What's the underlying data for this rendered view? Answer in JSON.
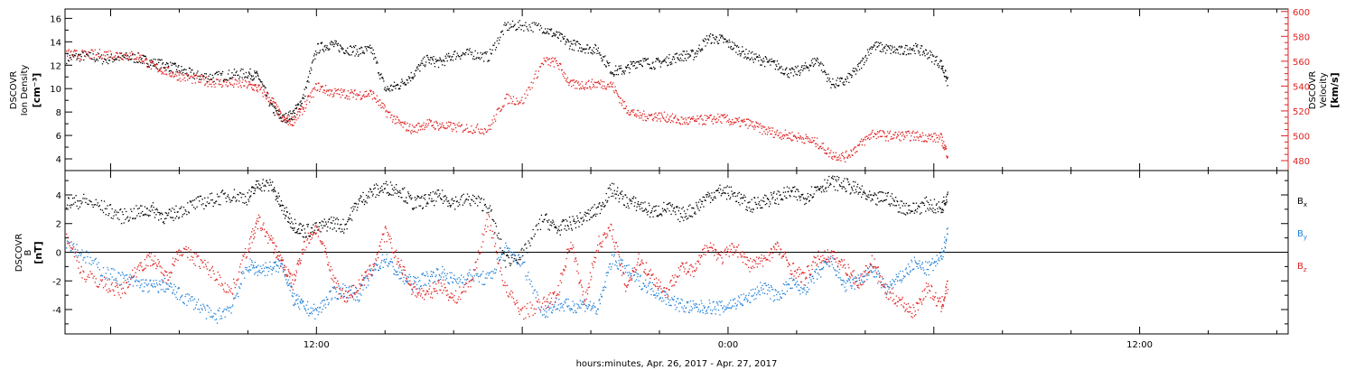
{
  "chart_data": {
    "type": "scatter",
    "xlabel": "hours:minutes, Apr. 26, 2017 - Apr. 27, 2017",
    "x_unit": "hours since 2017-04-26 00:00",
    "x_range": [
      4.67,
      40.33
    ],
    "x_ticks": [
      {
        "x": 12,
        "label": "12:00"
      },
      {
        "x": 24,
        "label": "0:00"
      },
      {
        "x": 36,
        "label": "12:00"
      }
    ],
    "panels": [
      {
        "name": "density-velocity",
        "ylabel_lines": [
          "DSCOVR",
          "Ion Density",
          "[cm⁻³]"
        ],
        "ylim": [
          3,
          16.8
        ],
        "yticks": [
          4,
          6,
          8,
          10,
          12,
          14,
          16
        ],
        "right_axis": {
          "label_lines": [
            "DSCOVR",
            "Velocity",
            "[km/s]"
          ],
          "color": "#e02020",
          "ylim": [
            472,
            602
          ],
          "yticks": [
            480,
            500,
            520,
            540,
            560,
            580,
            600
          ]
        },
        "series": [
          {
            "name": "density",
            "color": "#000000",
            "axis": "left",
            "x": [
              4.7,
              5.2,
              5.8,
              6.3,
              6.8,
              7.2,
              7.6,
              8.0,
              8.5,
              9.0,
              9.5,
              10.0,
              10.3,
              10.7,
              11.0,
              11.3,
              11.6,
              12.0,
              12.4,
              12.8,
              13.2,
              13.6,
              14.0,
              14.4,
              14.8,
              15.2,
              15.6,
              16.0,
              16.5,
              17.0,
              17.5,
              18.0,
              18.6,
              19.0,
              19.4,
              19.8,
              20.2,
              20.6,
              21.0,
              21.4,
              21.8,
              22.2,
              22.6,
              23.0,
              23.4,
              23.8,
              24.2,
              24.6,
              25.0,
              25.4,
              25.8,
              26.2,
              26.6,
              27.0,
              27.4,
              27.8,
              28.2,
              28.6,
              29.0,
              29.4,
              29.8,
              30.2,
              30.4
            ],
            "y": [
              12.6,
              12.8,
              12.5,
              12.7,
              12.6,
              12.2,
              12.0,
              11.6,
              11.1,
              11.0,
              11.2,
              11.3,
              11.0,
              8.3,
              7.4,
              7.8,
              9.2,
              13.4,
              13.8,
              13.4,
              13.2,
              13.3,
              9.9,
              10.3,
              11.2,
              12.5,
              12.2,
              12.9,
              13.0,
              12.7,
              15.3,
              15.4,
              15.2,
              14.5,
              13.8,
              13.5,
              13.3,
              11.5,
              11.6,
              12.4,
              12.1,
              12.4,
              12.8,
              12.9,
              14.3,
              14.2,
              13.5,
              12.8,
              12.4,
              12.0,
              11.3,
              11.7,
              12.5,
              10.4,
              10.6,
              11.8,
              13.7,
              13.4,
              13.2,
              13.5,
              13.0,
              12.1,
              10.5
            ]
          },
          {
            "name": "velocity",
            "color": "#e02020",
            "axis": "right",
            "x": [
              4.7,
              5.2,
              5.8,
              6.3,
              6.8,
              7.2,
              7.6,
              8.0,
              8.5,
              9.0,
              9.5,
              10.0,
              10.3,
              10.7,
              11.0,
              11.3,
              11.6,
              12.0,
              12.4,
              12.8,
              13.2,
              13.6,
              14.0,
              14.4,
              14.8,
              15.2,
              15.6,
              16.0,
              16.5,
              17.0,
              17.5,
              18.0,
              18.6,
              19.0,
              19.4,
              19.8,
              20.2,
              20.6,
              21.0,
              21.4,
              21.8,
              22.2,
              22.6,
              23.0,
              23.4,
              23.8,
              24.2,
              24.6,
              25.0,
              25.4,
              25.8,
              26.2,
              26.6,
              27.0,
              27.4,
              27.8,
              28.2,
              28.6,
              29.0,
              29.4,
              29.8,
              30.2,
              30.4
            ],
            "y": [
              566,
              565,
              566,
              565,
              564,
              556,
              552,
              548,
              545,
              543,
              542,
              541,
              538,
              528,
              513,
              512,
              522,
              540,
              535,
              534,
              533,
              534,
              520,
              510,
              505,
              510,
              508,
              507,
              506,
              505,
              530,
              528,
              560,
              559,
              541,
              541,
              542,
              541,
              522,
              516,
              516,
              515,
              512,
              512,
              513,
              514,
              511,
              510,
              505,
              502,
              500,
              498,
              494,
              485,
              483,
              492,
              502,
              500,
              500,
              500,
              499,
              498,
              484
            ]
          }
        ]
      },
      {
        "name": "magnetic-field",
        "ylabel_lines": [
          "DSCOVR",
          "B",
          "[nT]"
        ],
        "ylim": [
          -5.7,
          5.7
        ],
        "yticks": [
          -4,
          -2,
          0,
          2,
          4
        ],
        "zero_line": true,
        "legend_position": "right",
        "series": [
          {
            "name": "Bx",
            "legend_label": "B",
            "legend_subscript": "x",
            "color": "#000000",
            "x": [
              4.7,
              5.2,
              5.8,
              6.3,
              6.8,
              7.2,
              7.6,
              8.0,
              8.5,
              9.0,
              9.5,
              10.0,
              10.3,
              10.7,
              11.0,
              11.3,
              11.6,
              12.0,
              12.4,
              12.8,
              13.2,
              13.6,
              14.0,
              14.4,
              14.8,
              15.2,
              15.6,
              16.0,
              16.5,
              17.0,
              17.5,
              18.0,
              18.6,
              19.0,
              19.4,
              19.8,
              20.2,
              20.6,
              21.0,
              21.4,
              21.8,
              22.2,
              22.6,
              23.0,
              23.4,
              23.8,
              24.2,
              24.6,
              25.0,
              25.4,
              25.8,
              26.2,
              26.6,
              27.0,
              27.4,
              27.8,
              28.2,
              28.6,
              29.0,
              29.4,
              29.8,
              30.2,
              30.4
            ],
            "y": [
              3.4,
              3.6,
              3.1,
              2.5,
              2.8,
              3.0,
              2.4,
              2.9,
              3.4,
              3.7,
              4.0,
              3.8,
              4.8,
              4.6,
              3.0,
              2.0,
              1.5,
              1.6,
              2.1,
              1.8,
              3.5,
              4.2,
              4.5,
              4.4,
              3.4,
              3.6,
              3.9,
              3.5,
              3.7,
              3.2,
              -0.6,
              -0.2,
              2.4,
              1.6,
              2.0,
              2.4,
              3.0,
              4.4,
              3.6,
              3.3,
              2.8,
              3.1,
              2.6,
              3.0,
              3.9,
              4.3,
              4.0,
              3.2,
              3.6,
              3.8,
              4.2,
              3.8,
              4.5,
              4.9,
              4.7,
              4.3,
              3.6,
              3.9,
              3.2,
              3.0,
              3.4,
              3.0,
              4.2
            ]
          },
          {
            "name": "By",
            "legend_label": "B",
            "legend_subscript": "y",
            "color": "#1e7fd8",
            "x": [
              4.7,
              5.2,
              5.8,
              6.3,
              6.8,
              7.2,
              7.6,
              8.0,
              8.5,
              9.0,
              9.5,
              10.0,
              10.3,
              10.7,
              11.0,
              11.3,
              11.6,
              12.0,
              12.4,
              12.8,
              13.2,
              13.6,
              14.0,
              14.4,
              14.8,
              15.2,
              15.6,
              16.0,
              16.5,
              17.0,
              17.5,
              18.0,
              18.6,
              19.0,
              19.4,
              19.8,
              20.2,
              20.6,
              21.0,
              21.4,
              21.8,
              22.2,
              22.6,
              23.0,
              23.4,
              23.8,
              24.2,
              24.6,
              25.0,
              25.4,
              25.8,
              26.2,
              26.6,
              27.0,
              27.4,
              27.8,
              28.2,
              28.6,
              29.0,
              29.4,
              29.8,
              30.2,
              30.4
            ],
            "y": [
              0.8,
              -0.2,
              -1.4,
              -1.8,
              -2.2,
              -2.4,
              -2.3,
              -3.0,
              -3.6,
              -4.6,
              -3.8,
              -0.9,
              -1.2,
              -1.1,
              -0.8,
              -3.2,
              -3.8,
              -4.2,
              -3.0,
              -2.6,
              -3.0,
              -1.4,
              -0.4,
              -1.6,
              -2.2,
              -1.8,
              -1.4,
              -2.0,
              -1.6,
              -1.9,
              0.2,
              -0.8,
              -4.2,
              -3.6,
              -3.8,
              -3.6,
              -4.0,
              -0.4,
              -1.2,
              -2.0,
              -2.6,
              -3.2,
              -3.7,
              -3.9,
              -3.8,
              -3.9,
              -3.5,
              -3.2,
              -2.4,
              -3.1,
              -2.2,
              -2.6,
              -1.5,
              -0.6,
              -2.4,
              -2.0,
              -1.2,
              -2.6,
              -1.8,
              -0.8,
              -1.2,
              -0.4,
              1.6
            ]
          },
          {
            "name": "Bz",
            "legend_label": "B",
            "legend_subscript": "z",
            "color": "#e02020",
            "x": [
              4.7,
              5.2,
              5.8,
              6.3,
              6.8,
              7.2,
              7.6,
              8.0,
              8.5,
              9.0,
              9.5,
              10.0,
              10.3,
              10.7,
              11.0,
              11.3,
              11.6,
              12.0,
              12.4,
              12.8,
              13.2,
              13.6,
              14.0,
              14.4,
              14.8,
              15.2,
              15.6,
              16.0,
              16.5,
              17.0,
              17.5,
              18.0,
              18.6,
              19.0,
              19.4,
              19.8,
              20.2,
              20.6,
              21.0,
              21.4,
              21.8,
              22.2,
              22.6,
              23.0,
              23.4,
              23.8,
              24.2,
              24.6,
              25.0,
              25.4,
              25.8,
              26.2,
              26.6,
              27.0,
              27.4,
              27.8,
              28.2,
              28.6,
              29.0,
              29.4,
              29.8,
              30.2,
              30.4
            ],
            "y": [
              1.2,
              -1.6,
              -2.2,
              -2.8,
              -1.0,
              -0.4,
              -1.8,
              0.2,
              -0.5,
              -1.5,
              -2.8,
              0.4,
              2.2,
              0.6,
              -0.8,
              -2.2,
              0.4,
              1.8,
              -1.4,
              -3.2,
              -2.4,
              -1.2,
              1.4,
              -0.8,
              -2.6,
              -3.0,
              -2.2,
              -3.3,
              -2.0,
              2.4,
              -2.6,
              -4.2,
              -3.6,
              -3.0,
              0.8,
              -3.4,
              0.6,
              1.6,
              -2.4,
              -0.5,
              -1.8,
              -2.8,
              -1.0,
              -1.4,
              0.6,
              -0.4,
              0.4,
              -0.9,
              -0.6,
              0.4,
              -1.0,
              -1.8,
              -0.4,
              -0.2,
              -1.0,
              -2.2,
              -0.6,
              -2.8,
              -3.4,
              -4.2,
              -2.4,
              -3.8,
              -2.2
            ]
          }
        ]
      }
    ]
  }
}
